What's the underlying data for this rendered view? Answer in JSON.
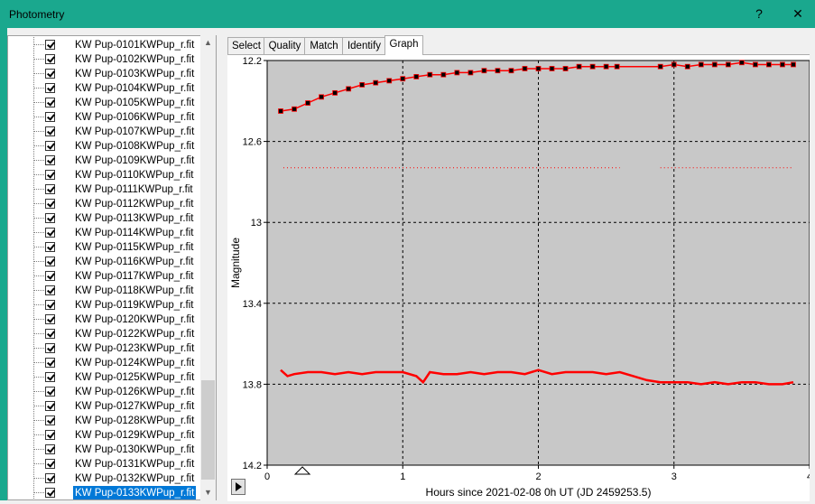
{
  "window": {
    "title": "Photometry",
    "help_label": "?",
    "close_label": "✕"
  },
  "tabs": [
    "Select",
    "Quality",
    "Match",
    "Identify",
    "Graph"
  ],
  "active_tab": "Graph",
  "file_list": [
    "KW Pup-0101KWPup_r.fit",
    "KW Pup-0102KWPup_r.fit",
    "KW Pup-0103KWPup_r.fit",
    "KW Pup-0104KWPup_r.fit",
    "KW Pup-0105KWPup_r.fit",
    "KW Pup-0106KWPup_r.fit",
    "KW Pup-0107KWPup_r.fit",
    "KW Pup-0108KWPup_r.fit",
    "KW Pup-0109KWPup_r.fit",
    "KW Pup-0110KWPup_r.fit",
    "KW Pup-0111KWPup_r.fit",
    "KW Pup-0112KWPup_r.fit",
    "KW Pup-0113KWPup_r.fit",
    "KW Pup-0114KWPup_r.fit",
    "KW Pup-0115KWPup_r.fit",
    "KW Pup-0116KWPup_r.fit",
    "KW Pup-0117KWPup_r.fit",
    "KW Pup-0118KWPup_r.fit",
    "KW Pup-0119KWPup_r.fit",
    "KW Pup-0120KWPup_r.fit",
    "KW Pup-0122KWPup_r.fit",
    "KW Pup-0123KWPup_r.fit",
    "KW Pup-0124KWPup_r.fit",
    "KW Pup-0125KWPup_r.fit",
    "KW Pup-0126KWPup_r.fit",
    "KW Pup-0127KWPup_r.fit",
    "KW Pup-0128KWPup_r.fit",
    "KW Pup-0129KWPup_r.fit",
    "KW Pup-0130KWPup_r.fit",
    "KW Pup-0131KWPup_r.fit",
    "KW Pup-0132KWPup_r.fit",
    "KW Pup-0133KWPup_r.fit"
  ],
  "selected_file": "KW Pup-0133KWPup_r.fit",
  "icons": {
    "play": "play-icon",
    "scroll_up": "scroll-up-icon",
    "scroll_down": "scroll-down-icon",
    "marker": "triangle-marker-icon"
  },
  "colors": {
    "titlebar": "#1aa88e",
    "plot_bg": "#c8c8c8",
    "series": "#ff0000",
    "points": "#000000",
    "selection": "#0078d7"
  },
  "chart_data": {
    "type": "line",
    "xlabel": "Hours since 2021-02-08 0h UT (JD 2459253.5)",
    "ylabel": "Magnitude",
    "xlim": [
      0,
      4
    ],
    "ylim": [
      14.2,
      12.2
    ],
    "y_inverted": true,
    "x_ticks": [
      "0",
      "1",
      "2",
      "3",
      "4"
    ],
    "y_ticks": [
      "12.2",
      "12.6",
      "13",
      "13.4",
      "13.8",
      "14.2"
    ],
    "grid": true,
    "marker_x": 0.26,
    "series": [
      {
        "style": "line+markers",
        "x": [
          0.1,
          0.2,
          0.3,
          0.4,
          0.5,
          0.6,
          0.7,
          0.8,
          0.9,
          1.0,
          1.1,
          1.2,
          1.3,
          1.4,
          1.5,
          1.6,
          1.7,
          1.8,
          1.9,
          2.0,
          2.1,
          2.2,
          2.3,
          2.4,
          2.5,
          2.58,
          2.9,
          3.0,
          3.1,
          3.2,
          3.3,
          3.4,
          3.5,
          3.6,
          3.7,
          3.8,
          3.88
        ],
        "y": [
          12.45,
          12.44,
          12.41,
          12.38,
          12.36,
          12.34,
          12.32,
          12.31,
          12.3,
          12.29,
          12.28,
          12.27,
          12.27,
          12.26,
          12.26,
          12.25,
          12.25,
          12.25,
          12.24,
          12.24,
          12.24,
          12.24,
          12.23,
          12.23,
          12.23,
          12.23,
          12.23,
          12.22,
          12.23,
          12.22,
          12.22,
          12.22,
          12.21,
          12.22,
          12.22,
          12.22,
          12.22
        ]
      },
      {
        "style": "dotted",
        "x": [
          0.12,
          2.6,
          2.9,
          3.88
        ],
        "y": [
          12.73,
          12.73,
          12.73,
          12.73
        ]
      },
      {
        "style": "line",
        "x": [
          0.1,
          0.15,
          0.2,
          0.3,
          0.4,
          0.5,
          0.6,
          0.7,
          0.8,
          0.9,
          1.0,
          1.1,
          1.15,
          1.2,
          1.3,
          1.4,
          1.5,
          1.6,
          1.7,
          1.8,
          1.9,
          2.0,
          2.1,
          2.2,
          2.3,
          2.4,
          2.5,
          2.6,
          2.7,
          2.8,
          2.9,
          3.0,
          3.1,
          3.2,
          3.3,
          3.4,
          3.5,
          3.6,
          3.7,
          3.8,
          3.88
        ],
        "y": [
          13.73,
          13.76,
          13.75,
          13.74,
          13.74,
          13.75,
          13.74,
          13.75,
          13.74,
          13.74,
          13.74,
          13.76,
          13.79,
          13.74,
          13.75,
          13.75,
          13.74,
          13.75,
          13.74,
          13.74,
          13.75,
          13.73,
          13.75,
          13.74,
          13.74,
          13.74,
          13.75,
          13.74,
          13.76,
          13.78,
          13.79,
          13.79,
          13.79,
          13.8,
          13.79,
          13.8,
          13.79,
          13.79,
          13.8,
          13.8,
          13.79
        ]
      }
    ]
  }
}
